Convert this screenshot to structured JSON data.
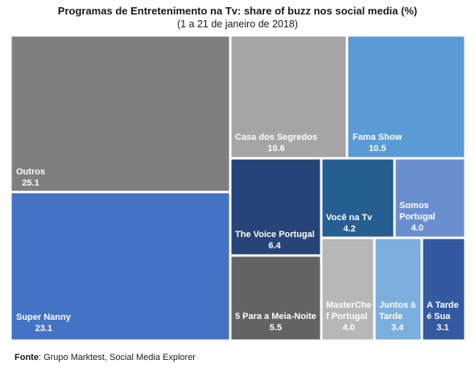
{
  "chart_data": {
    "type": "treemap",
    "title": "Programas de Entretenimento na Tv: share of buzz nos social media (%)",
    "subtitle": "(1 a 21 de janeiro de 2018)",
    "unit": "%",
    "items": [
      {
        "name": "Outros",
        "value": 25.1,
        "color": "#7f7f7f"
      },
      {
        "name": "Super Nanny",
        "value": 23.1,
        "color": "#4472c4"
      },
      {
        "name": "Casa dos Segredos",
        "value": 10.6,
        "color": "#a5a5a5"
      },
      {
        "name": "Fama Show",
        "value": 10.5,
        "color": "#5b9bd5"
      },
      {
        "name": "The Voice Portugal",
        "value": 6.4,
        "color": "#264478"
      },
      {
        "name": "5 Para a Meia-Noite",
        "value": 5.5,
        "color": "#636363"
      },
      {
        "name": "Você na Tv",
        "value": 4.2,
        "color": "#255e91"
      },
      {
        "name": "Somos Portugal",
        "value": 4.0,
        "color": "#698ed0"
      },
      {
        "name": "MasterChef Portugal",
        "value": 4.0,
        "color": "#b7b7b7"
      },
      {
        "name": "Juntos à Tarde",
        "value": 3.4,
        "color": "#7cafdd"
      },
      {
        "name": "A Tarde é Sua",
        "value": 3.1,
        "color": "#335aa1"
      }
    ],
    "labels": [
      [
        "Outros"
      ],
      [
        "Super Nanny"
      ],
      [
        "Casa dos Segredos"
      ],
      [
        "Fama Show"
      ],
      [
        "The Voice Portugal"
      ],
      [
        "5 Para a Meia-Noite"
      ],
      [
        "Você na Tv"
      ],
      [
        "Somos",
        "Portugal"
      ],
      [
        "MasterChe",
        "f Portugal"
      ],
      [
        "Juntos à",
        "Tarde"
      ],
      [
        "A Tarde",
        "é Sua"
      ]
    ]
  },
  "source": {
    "label": "Fonte",
    "text": ": Grupo Marktest, Social Media Explorer"
  }
}
